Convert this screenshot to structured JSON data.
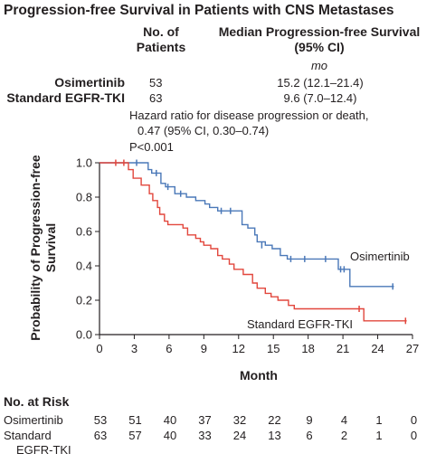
{
  "title": "Progression-free Survival in Patients with CNS Metastases",
  "table": {
    "col1_line1": "No. of",
    "col1_line2": "Patients",
    "col2_line1": "Median Progression-free Survival",
    "col2_line2": "(95% CI)",
    "col2_unit": "mo",
    "rows": [
      {
        "name": "Osimertinib",
        "patients": "53",
        "median": "15.2 (12.1–21.4)"
      },
      {
        "name": "Standard EGFR-TKI",
        "patients": "63",
        "median": "9.6 (7.0–12.4)"
      }
    ]
  },
  "hazard": {
    "line1": "Hazard ratio for disease progression or death,",
    "line2": "0.47 (95% CI, 0.30–0.74)",
    "line3": "P<0.001"
  },
  "colors": {
    "osimertinib": "#4a78b8",
    "standard": "#e2473d",
    "axis": "#231f20"
  },
  "chart_data": {
    "type": "line",
    "xlabel": "Month",
    "ylabel_line1": "Probability of Progression-free",
    "ylabel_line2": "Survival",
    "xlim": [
      0,
      27
    ],
    "ylim": [
      0,
      1.0
    ],
    "x_ticks": [
      "0",
      "3",
      "6",
      "9",
      "12",
      "15",
      "18",
      "21",
      "24",
      "27"
    ],
    "y_ticks": [
      "0.0",
      "0.2",
      "0.4",
      "0.6",
      "0.8",
      "1.0"
    ],
    "series": [
      {
        "name": "Osimertinib",
        "color": "#4a78b8",
        "steps": [
          [
            0,
            1.0
          ],
          [
            4.2,
            0.96
          ],
          [
            4.5,
            0.94
          ],
          [
            5.3,
            0.88
          ],
          [
            5.7,
            0.86
          ],
          [
            6.5,
            0.82
          ],
          [
            7.5,
            0.8
          ],
          [
            8.3,
            0.78
          ],
          [
            9.1,
            0.76
          ],
          [
            9.5,
            0.74
          ],
          [
            10.2,
            0.72
          ],
          [
            11.5,
            0.72
          ],
          [
            12.3,
            0.64
          ],
          [
            12.8,
            0.62
          ],
          [
            13.4,
            0.58
          ],
          [
            13.6,
            0.54
          ],
          [
            14,
            0.54
          ],
          [
            14.3,
            0.52
          ],
          [
            14.9,
            0.5
          ],
          [
            15.6,
            0.46
          ],
          [
            16.2,
            0.44
          ],
          [
            20.6,
            0.38
          ],
          [
            21.6,
            0.28
          ],
          [
            25.4,
            0.28
          ]
        ],
        "censors": [
          [
            3.2,
            1.0
          ],
          [
            4.9,
            0.94
          ],
          [
            5.9,
            0.86
          ],
          [
            7.0,
            0.82
          ],
          [
            10.5,
            0.72
          ],
          [
            11.3,
            0.72
          ],
          [
            14.0,
            0.52
          ],
          [
            16.5,
            0.44
          ],
          [
            17.7,
            0.44
          ],
          [
            19.5,
            0.44
          ],
          [
            20.8,
            0.38
          ],
          [
            21.1,
            0.38
          ],
          [
            25.3,
            0.28
          ]
        ]
      },
      {
        "name": "Standard EGFR-TKI",
        "color": "#e2473d",
        "steps": [
          [
            0,
            1.0
          ],
          [
            2.5,
            0.96
          ],
          [
            2.9,
            0.91
          ],
          [
            3.6,
            0.87
          ],
          [
            4.3,
            0.82
          ],
          [
            4.6,
            0.78
          ],
          [
            5.0,
            0.74
          ],
          [
            5.2,
            0.7
          ],
          [
            5.6,
            0.66
          ],
          [
            5.9,
            0.64
          ],
          [
            7.2,
            0.62
          ],
          [
            7.6,
            0.58
          ],
          [
            8.3,
            0.56
          ],
          [
            8.7,
            0.54
          ],
          [
            9.0,
            0.52
          ],
          [
            9.6,
            0.5
          ],
          [
            10.2,
            0.46
          ],
          [
            10.6,
            0.44
          ],
          [
            11.2,
            0.41
          ],
          [
            11.6,
            0.38
          ],
          [
            12.4,
            0.35
          ],
          [
            13.2,
            0.3
          ],
          [
            13.6,
            0.27
          ],
          [
            14.3,
            0.24
          ],
          [
            14.8,
            0.22
          ],
          [
            15.4,
            0.2
          ],
          [
            16.3,
            0.17
          ],
          [
            16.8,
            0.15
          ],
          [
            22.8,
            0.08
          ],
          [
            26.5,
            0.08
          ]
        ],
        "censors": [
          [
            1.4,
            1.0
          ],
          [
            2.1,
            1.0
          ],
          [
            22.4,
            0.15
          ],
          [
            26.4,
            0.08
          ]
        ]
      }
    ],
    "series_labels": [
      "Osimertinib",
      "Standard EGFR-TKI"
    ]
  },
  "risk": {
    "title": "No. at Risk",
    "rows": [
      {
        "label_line1": "Osimertinib",
        "label_line2": "",
        "values": [
          "53",
          "51",
          "40",
          "37",
          "32",
          "22",
          "9",
          "4",
          "1",
          "0"
        ]
      },
      {
        "label_line1": "Standard",
        "label_line2": "EGFR-TKI",
        "values": [
          "63",
          "57",
          "40",
          "33",
          "24",
          "13",
          "6",
          "2",
          "1",
          "0"
        ]
      }
    ]
  }
}
